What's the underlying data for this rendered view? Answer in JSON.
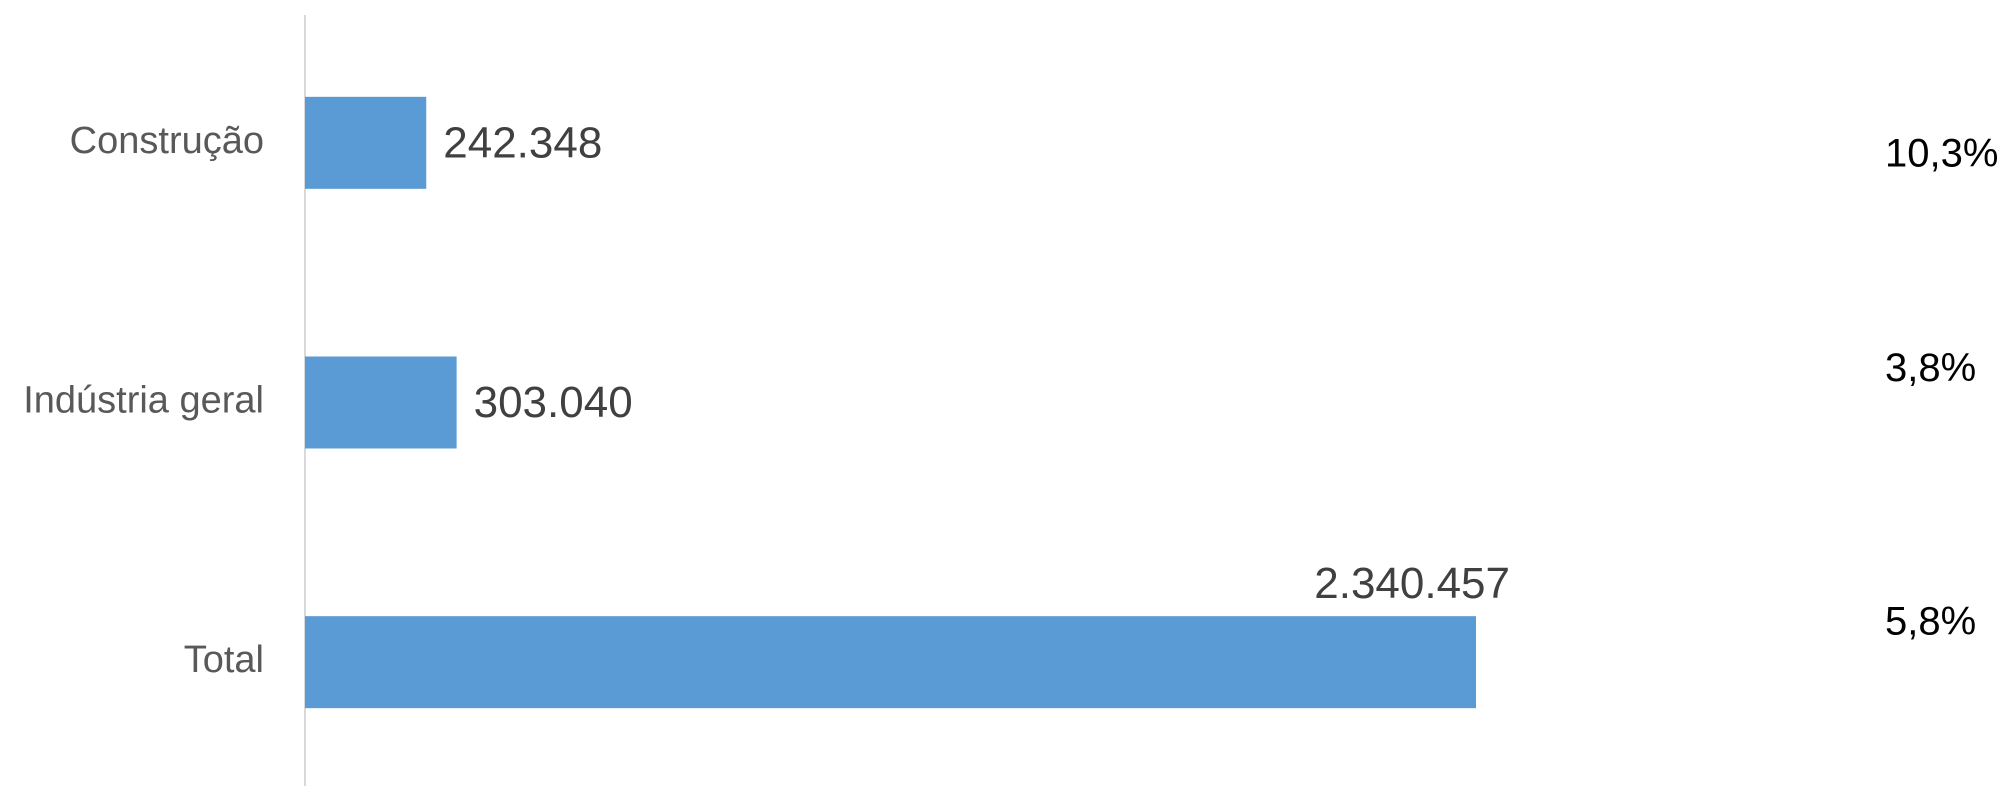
{
  "chart_data": {
    "type": "bar",
    "orientation": "horizontal",
    "categories": [
      "Construção",
      "Indústria geral",
      "Total"
    ],
    "series": [
      {
        "values": [
          242348,
          303040,
          2340457
        ],
        "value_labels": [
          "242.348",
          "303.040",
          "2.340.457"
        ],
        "color": "#5b9bd5"
      }
    ],
    "annotations": {
      "values": [
        10.3,
        3.8,
        5.8
      ],
      "value_labels": [
        "10,3%",
        "3,8%",
        "5,8%"
      ]
    },
    "xlim": [
      0,
      3000000
    ]
  }
}
